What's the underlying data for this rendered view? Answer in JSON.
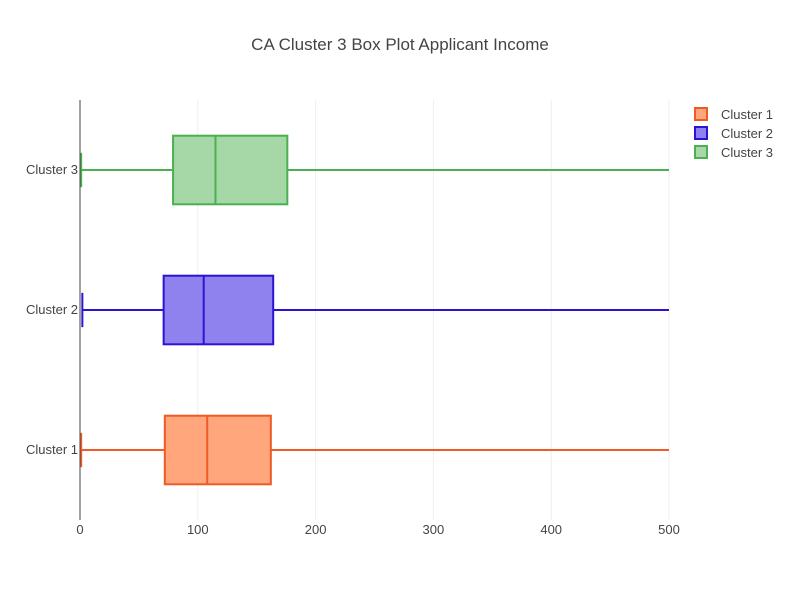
{
  "chart_data": {
    "type": "box",
    "orientation": "horizontal",
    "title": "CA Cluster 3 Box Plot Applicant Income",
    "xlabel": "",
    "ylabel": "",
    "xlim": [
      0,
      500
    ],
    "x_ticks": [
      0,
      100,
      200,
      300,
      400,
      500
    ],
    "grid": true,
    "legend_position": "top-right",
    "categories": [
      "Cluster 1",
      "Cluster 2",
      "Cluster 3"
    ],
    "series": [
      {
        "name": "Cluster 1",
        "color": "#f05a24",
        "fill": "#ffa67d",
        "min": 1,
        "q1": 72,
        "median": 108,
        "q3": 162,
        "max": 500
      },
      {
        "name": "Cluster 2",
        "color": "#2b13d6",
        "fill": "#8f82ef",
        "min": 2,
        "q1": 71,
        "median": 105,
        "q3": 164,
        "max": 500
      },
      {
        "name": "Cluster 3",
        "color": "#4caf50",
        "fill": "#a6d7a6",
        "min": 1,
        "q1": 79,
        "median": 115,
        "q3": 176,
        "max": 500
      }
    ]
  }
}
